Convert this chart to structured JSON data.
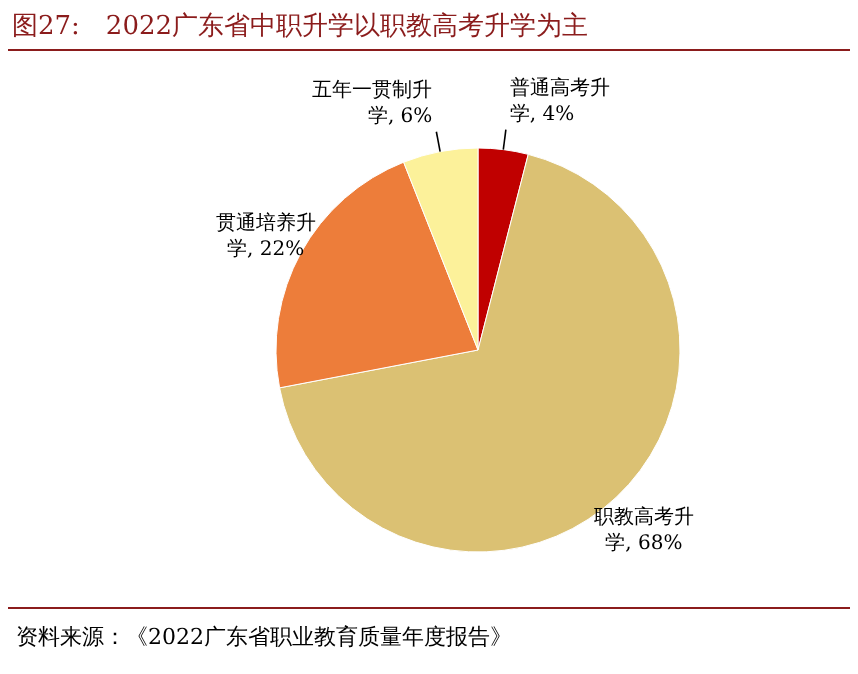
{
  "chart_data": {
    "type": "pie",
    "title": "图27:　2022广东省中职升学以职教高考升学为主",
    "categories": [
      "普通高考升学, 4%",
      "职教高考升学, 68%",
      "贯通培养升学, 22%",
      "五年一贯制升学, 6%"
    ],
    "values": [
      4,
      68,
      22,
      6
    ],
    "colors": [
      "#c00000",
      "#dbc173",
      "#ed7d3a",
      "#fcf19a"
    ],
    "legend": false,
    "annotations": [
      "资料来源：《2022广东省职业教育质量年度报告》"
    ]
  }
}
